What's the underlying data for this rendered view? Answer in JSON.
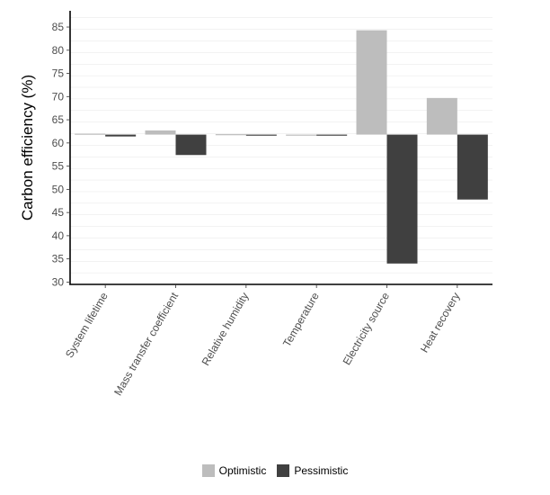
{
  "chart_data": {
    "type": "bar",
    "subtype": "tornado",
    "ylabel": "Carbon efficiency (%)",
    "xlabel": "",
    "baseline": 61.8,
    "ylim": [
      29.5,
      88.5
    ],
    "yticks": [
      30,
      35,
      40,
      45,
      50,
      55,
      60,
      65,
      70,
      75,
      80,
      85
    ],
    "grid": true,
    "legend_position": "bottom",
    "categories": [
      "System lifetime",
      "Mass transfer coefficient",
      "Relative humidity",
      "Temperature",
      "Electricity source",
      "Heat recovery"
    ],
    "series": [
      {
        "name": "Optimistic",
        "color": "#bdbdbd",
        "values": [
          62.0,
          62.7,
          61.9,
          61.8,
          84.3,
          69.7
        ]
      },
      {
        "name": "Pessimistic",
        "color": "#404040",
        "values": [
          61.4,
          57.4,
          61.6,
          61.7,
          34.0,
          47.8
        ]
      }
    ]
  }
}
